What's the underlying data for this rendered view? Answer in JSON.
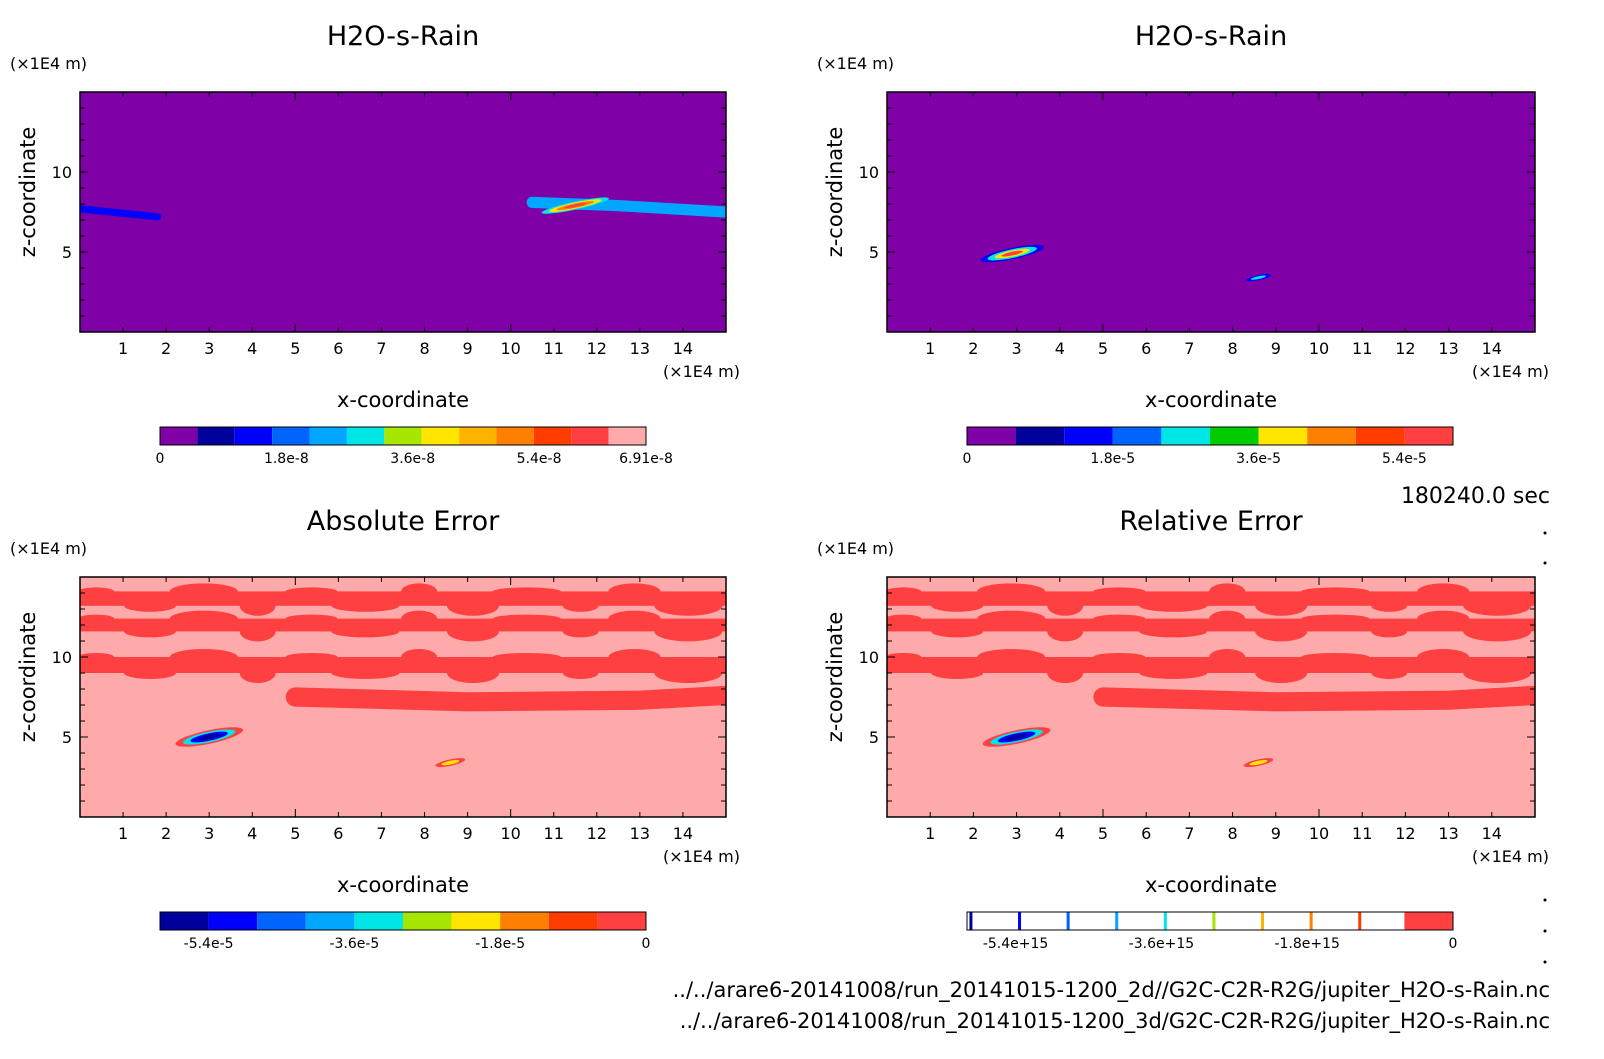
{
  "time_label": "180240.0 sec",
  "files": [
    "../../arare6-20141008/run_20141015-1200_2d//G2C-C2R-R2G/jupiter_H2O-s-Rain.nc",
    "../../arare6-20141008/run_20141015-1200_3d/G2C-C2R-R2G/jupiter_H2O-s-Rain.nc"
  ],
  "colors": {
    "purple": "#7e00a6",
    "navy": "#00009c",
    "blue": "#0000ff",
    "azure": "#0064ff",
    "sky": "#00a6ff",
    "cyan": "#00e6e6",
    "green": "#00cc00",
    "lime": "#a6e600",
    "yellow": "#ffe600",
    "amber": "#ffb300",
    "orange": "#ff8000",
    "redorange": "#ff3c00",
    "red": "#ff4040",
    "pink": "#ffaaaa"
  },
  "chart_data": [
    {
      "type": "heatmap",
      "title": "H2O-s-Rain",
      "xlabel": "x-coordinate",
      "ylabel": "z-coordinate",
      "x_unit": "(×1E4 m)",
      "y_unit": "(×1E4 m)",
      "xlim": [
        0,
        15
      ],
      "ylim": [
        0,
        15
      ],
      "xticks": [
        1,
        2,
        3,
        4,
        5,
        6,
        7,
        8,
        9,
        10,
        11,
        12,
        13,
        14
      ],
      "yticks": [
        5,
        10
      ],
      "background": "#7e00a6",
      "features": [
        {
          "kind": "band",
          "points": [
            [
              0,
              7.7
            ],
            [
              1.8,
              7.2
            ]
          ],
          "color": "#0000ff",
          "width": 0.45
        },
        {
          "kind": "band",
          "points": [
            [
              10.5,
              8.1
            ],
            [
              12.5,
              7.9
            ],
            [
              15,
              7.5
            ]
          ],
          "color": "#00a6ff",
          "width": 0.7
        },
        {
          "kind": "blob",
          "x": 11.5,
          "z": 7.9,
          "rx": 0.8,
          "rz": 0.25,
          "colors": [
            "#00e6e6",
            "#ffe600",
            "#ff8000",
            "#ff4040"
          ]
        }
      ],
      "colorbar": {
        "colors": [
          "#7e00a6",
          "#00009c",
          "#0000ff",
          "#0064ff",
          "#00a6ff",
          "#00e6e6",
          "#a6e600",
          "#ffe600",
          "#ffb300",
          "#ff8000",
          "#ff3c00",
          "#ff4040",
          "#ffaaaa"
        ],
        "labels": [
          "0",
          "1.8e-8",
          "3.6e-8",
          "5.4e-8",
          "6.91e-8"
        ],
        "label_fracs": [
          0,
          0.26,
          0.52,
          0.78,
          1.0
        ]
      }
    },
    {
      "type": "heatmap",
      "title": "H2O-s-Rain",
      "xlabel": "x-coordinate",
      "ylabel": "z-coordinate",
      "x_unit": "(×1E4 m)",
      "y_unit": "(×1E4 m)",
      "xlim": [
        0,
        15
      ],
      "ylim": [
        0,
        15
      ],
      "xticks": [
        1,
        2,
        3,
        4,
        5,
        6,
        7,
        8,
        9,
        10,
        11,
        12,
        13,
        14
      ],
      "yticks": [
        5,
        10
      ],
      "background": "#7e00a6",
      "features": [
        {
          "kind": "blob",
          "x": 2.9,
          "z": 4.9,
          "rx": 0.75,
          "rz": 0.35,
          "colors": [
            "#0000ff",
            "#00e6e6",
            "#ffe600",
            "#ff4040"
          ]
        },
        {
          "kind": "blob",
          "x": 8.6,
          "z": 3.4,
          "rx": 0.3,
          "rz": 0.15,
          "colors": [
            "#0000ff",
            "#00e6e6"
          ]
        }
      ],
      "colorbar": {
        "colors": [
          "#7e00a6",
          "#00009c",
          "#0000ff",
          "#0064ff",
          "#00e6e6",
          "#00cc00",
          "#ffe600",
          "#ff8000",
          "#ff3c00",
          "#ff4040"
        ],
        "labels": [
          "0",
          "1.8e-5",
          "3.6e-5",
          "5.4e-5"
        ],
        "label_fracs": [
          0,
          0.3,
          0.6,
          0.9
        ]
      }
    },
    {
      "type": "heatmap",
      "title": "Absolute Error",
      "xlabel": "x-coordinate",
      "ylabel": "z-coordinate",
      "x_unit": "(×1E4 m)",
      "y_unit": "(×1E4 m)",
      "xlim": [
        0,
        15
      ],
      "ylim": [
        0,
        15
      ],
      "xticks": [
        1,
        2,
        3,
        4,
        5,
        6,
        7,
        8,
        9,
        10,
        11,
        12,
        13,
        14
      ],
      "yticks": [
        5,
        10
      ],
      "background": "#ffaaaa",
      "features": [
        {
          "kind": "rect",
          "z0": 13.2,
          "z1": 14.1,
          "color": "#ff4040"
        },
        {
          "kind": "rect",
          "z0": 11.6,
          "z1": 12.4,
          "color": "#ff4040"
        },
        {
          "kind": "rect",
          "z0": 9.0,
          "z1": 10.0,
          "color": "#ff4040"
        },
        {
          "kind": "band",
          "points": [
            [
              5,
              7.5
            ],
            [
              9,
              7.2
            ],
            [
              13,
              7.3
            ],
            [
              15,
              7.6
            ]
          ],
          "color": "#ff4040",
          "width": 1.2
        },
        {
          "kind": "blob",
          "x": 3.0,
          "z": 5.0,
          "rx": 0.8,
          "rz": 0.42,
          "colors": [
            "#ff4040",
            "#00e6e6",
            "#0000ff",
            "#00009c"
          ]
        },
        {
          "kind": "blob",
          "x": 8.6,
          "z": 3.4,
          "rx": 0.35,
          "rz": 0.2,
          "colors": [
            "#ff4040",
            "#ffe600"
          ]
        }
      ],
      "colorbar": {
        "colors": [
          "#00009c",
          "#0000ff",
          "#0064ff",
          "#00a6ff",
          "#00e6e6",
          "#a6e600",
          "#ffe600",
          "#ff8000",
          "#ff3c00",
          "#ff4040"
        ],
        "labels": [
          "-5.4e-5",
          "-3.6e-5",
          "-1.8e-5",
          "0"
        ],
        "label_fracs": [
          0.1,
          0.4,
          0.7,
          1.0
        ]
      }
    },
    {
      "type": "heatmap",
      "title": "Relative Error",
      "xlabel": "x-coordinate",
      "ylabel": "z-coordinate",
      "x_unit": "(×1E4 m)",
      "y_unit": "(×1E4 m)",
      "xlim": [
        0,
        15
      ],
      "ylim": [
        0,
        15
      ],
      "xticks": [
        1,
        2,
        3,
        4,
        5,
        6,
        7,
        8,
        9,
        10,
        11,
        12,
        13,
        14
      ],
      "yticks": [
        5,
        10
      ],
      "background": "#ffaaaa",
      "features": [
        {
          "kind": "rect",
          "z0": 13.2,
          "z1": 14.1,
          "color": "#ff4040"
        },
        {
          "kind": "rect",
          "z0": 11.6,
          "z1": 12.4,
          "color": "#ff4040"
        },
        {
          "kind": "rect",
          "z0": 9.0,
          "z1": 10.0,
          "color": "#ff4040"
        },
        {
          "kind": "band",
          "points": [
            [
              5,
              7.5
            ],
            [
              9,
              7.2
            ],
            [
              13,
              7.3
            ],
            [
              15,
              7.6
            ]
          ],
          "color": "#ff4040",
          "width": 1.2
        },
        {
          "kind": "blob",
          "x": 3.0,
          "z": 5.0,
          "rx": 0.8,
          "rz": 0.42,
          "colors": [
            "#ff4040",
            "#00e6e6",
            "#0000ff",
            "#00009c"
          ]
        },
        {
          "kind": "blob",
          "x": 8.6,
          "z": 3.4,
          "rx": 0.35,
          "rz": 0.2,
          "colors": [
            "#ff4040",
            "#ffe600"
          ]
        }
      ],
      "colorbar": {
        "colors": [
          "#ffffff",
          "#ffffff",
          "#ffffff",
          "#ffffff",
          "#ffffff",
          "#ffffff",
          "#ffffff",
          "#ffffff",
          "#ffffff",
          "#ff4040"
        ],
        "stripes": [
          "#00009c",
          "#0000ff",
          "#0064ff",
          "#00a6ff",
          "#00e6e6",
          "#a6e600",
          "#ffb300",
          "#ff8000",
          "#ff3c00"
        ],
        "labels": [
          "-5.4e+15",
          "-3.6e+15",
          "-1.8e+15",
          "0"
        ],
        "label_fracs": [
          0.1,
          0.4,
          0.7,
          1.0
        ]
      }
    }
  ]
}
